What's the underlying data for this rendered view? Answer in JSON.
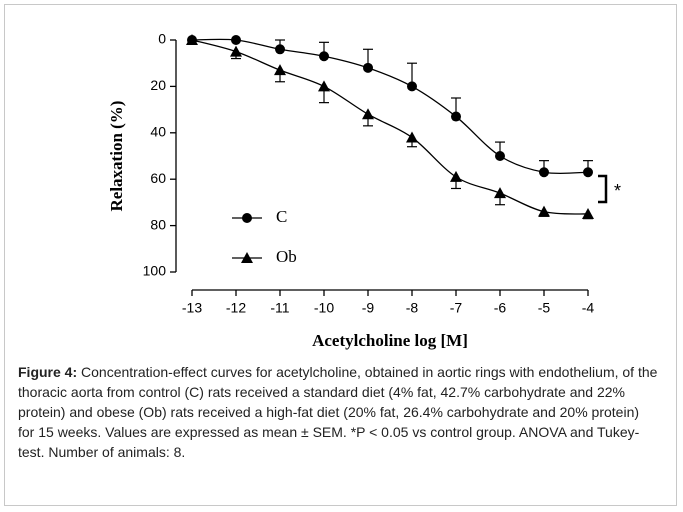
{
  "chart_data": {
    "type": "line",
    "y_label": "Relaxation (%)",
    "x_label": "Acetylcholine log [M]",
    "x": [
      -13,
      -12,
      -11,
      -10,
      -9,
      -8,
      -7,
      -6,
      -5,
      -4
    ],
    "xlim": [
      -13,
      -4
    ],
    "xticks": [
      -13,
      -12,
      -11,
      -10,
      -9,
      -8,
      -7,
      -6,
      -5,
      -4
    ],
    "ylim": [
      0,
      100
    ],
    "y_inverted": true,
    "yticks": [
      0,
      20,
      40,
      60,
      80,
      100
    ],
    "series": [
      {
        "name": "C",
        "color": "#000000",
        "marker": "circle",
        "error_side": "minus",
        "values": [
          0,
          0,
          4,
          7,
          12,
          20,
          33,
          50,
          57,
          57
        ],
        "errors": [
          0,
          0,
          4,
          6,
          8,
          10,
          8,
          6,
          5,
          5
        ]
      },
      {
        "name": "Ob",
        "color": "#000000",
        "marker": "triangle",
        "error_side": "plus",
        "values": [
          0,
          5,
          13,
          20,
          32,
          42,
          59,
          66,
          74,
          75
        ],
        "errors": [
          0,
          3,
          5,
          7,
          5,
          4,
          5,
          5,
          2,
          2
        ]
      }
    ],
    "annotation": "*"
  },
  "caption": {
    "label": "Figure 4:",
    "text": "Concentration-effect curves for acetylcholine, obtained in aortic rings with endothelium, of the thoracic aorta from control (C) rats received a standard diet (4% fat, 42.7% carbohydrate and 22% protein) and obese (Ob) rats received a high-fat diet (20% fat, 26.4% carbohydrate and 20% protein) for 15 weeks. Values are expressed as mean ± SEM. *P < 0.05 vs control group. ANOVA and Tukey-test. Number of animals: 8."
  }
}
